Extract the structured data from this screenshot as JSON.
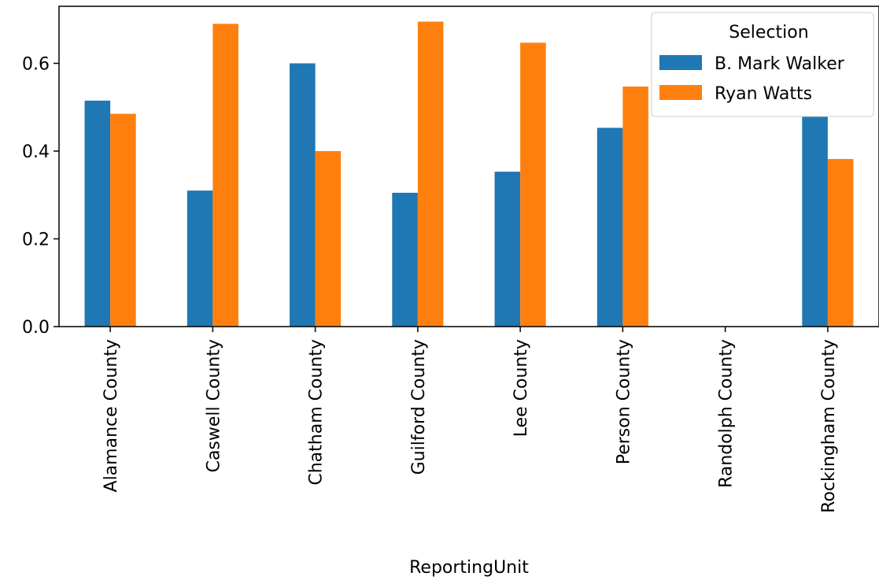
{
  "chart_data": {
    "type": "bar",
    "title": "",
    "xlabel": "ReportingUnit",
    "ylabel": "",
    "ylim": [
      0,
      0.73
    ],
    "yticks": [
      "0.0",
      "0.2",
      "0.4",
      "0.6"
    ],
    "categories": [
      "Alamance County",
      "Caswell County",
      "Chatham County",
      "Guilford County",
      "Lee County",
      "Person County",
      "Randolph County",
      "Rockingham County"
    ],
    "series": [
      {
        "name": "B. Mark Walker",
        "color": "#1f77b4",
        "values": [
          0.515,
          0.31,
          0.6,
          0.305,
          0.353,
          0.453,
          0.0,
          0.478
        ]
      },
      {
        "name": "Ryan Watts",
        "color": "#ff7f0e",
        "values": [
          0.485,
          0.69,
          0.4,
          0.695,
          0.647,
          0.547,
          0.0,
          0.382
        ]
      }
    ],
    "grid": false,
    "legend": {
      "title": "Selection",
      "placement": "top-right"
    }
  }
}
